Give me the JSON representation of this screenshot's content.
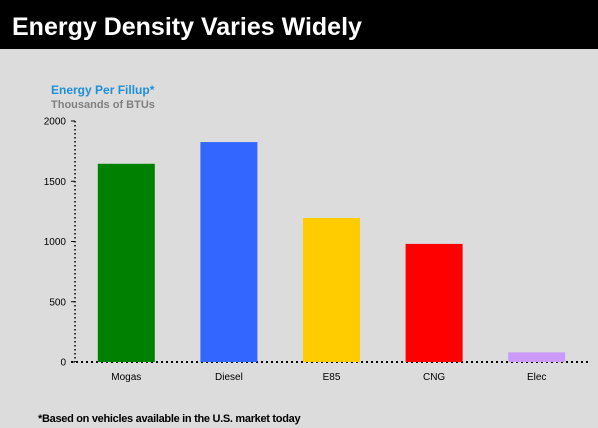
{
  "title": "Energy Density Varies Widely",
  "footnote": "*Based on vehicles available in the U.S. market today",
  "colors": {
    "background": "#dcdcdc",
    "title_bar": "#000000",
    "title_text": "#ffffff",
    "ylabel_primary": "#1f8fd6",
    "ylabel_secondary": "#808080"
  },
  "chart_data": {
    "type": "bar",
    "ylabel": "Energy  Per Fillup*",
    "ylabel_sub": "Thousands of BTUs",
    "categories": [
      "Mogas",
      "Diesel",
      "E85",
      "CNG",
      "Elec"
    ],
    "values": [
      1645,
      1825,
      1195,
      980,
      80
    ],
    "bar_colors": [
      "#008000",
      "#3366ff",
      "#ffcc00",
      "#ff0000",
      "#cc99ff"
    ],
    "yticks": [
      0,
      500,
      1000,
      1500,
      2000
    ],
    "ylim": [
      0,
      2000
    ],
    "grid": false,
    "legend": "none"
  }
}
